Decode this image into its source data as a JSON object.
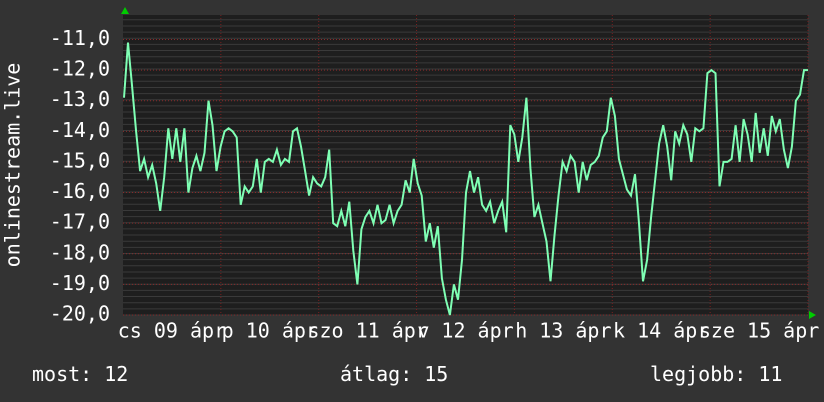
{
  "chart_data": {
    "type": "line",
    "y_label": "onlinestream.live",
    "x_labels": [
      "cs 09 ápr",
      "p 10 ápr",
      "szo 11 ápr",
      "v 12 ápr",
      "h 13 ápr",
      "k 14 ápr",
      "sze 15 ápr"
    ],
    "ylim": [
      -20,
      -10.2
    ],
    "yticks": [
      {
        "value": -11,
        "label": "-11,0"
      },
      {
        "value": -12,
        "label": "-12,0"
      },
      {
        "value": -13,
        "label": "-13,0"
      },
      {
        "value": -14,
        "label": "-14,0"
      },
      {
        "value": -15,
        "label": "-15,0"
      },
      {
        "value": -16,
        "label": "-16,0"
      },
      {
        "value": -17,
        "label": "-17,0"
      },
      {
        "value": -18,
        "label": "-18,0"
      },
      {
        "value": -19,
        "label": "-19,0"
      },
      {
        "value": -20,
        "label": "-20,0"
      }
    ],
    "grid": true,
    "series": [
      {
        "color": "#7fffb4",
        "values": [
          -12.9,
          -11.1,
          -12.5,
          -14,
          -15.3,
          -14.9,
          -15.5,
          -15.1,
          -15.7,
          -16.6,
          -15.5,
          -13.9,
          -14.9,
          -13.9,
          -15,
          -13.9,
          -16,
          -15.2,
          -14.8,
          -15.3,
          -14.7,
          -13,
          -13.8,
          -15.3,
          -14.5,
          -14,
          -13.9,
          -14,
          -14.2,
          -16.4,
          -15.8,
          -16,
          -15.8,
          -14.9,
          -16,
          -15,
          -14.9,
          -15,
          -14.6,
          -15.1,
          -14.9,
          -15,
          -14,
          -13.9,
          -14.5,
          -15.3,
          -16.1,
          -15.5,
          -15.7,
          -15.8,
          -15.5,
          -14.6,
          -17,
          -17.1,
          -16.6,
          -17.1,
          -16.3,
          -17.9,
          -19,
          -17.2,
          -16.8,
          -16.6,
          -17,
          -16.4,
          -17,
          -16.9,
          -16.4,
          -17,
          -16.6,
          -16.4,
          -15.6,
          -16,
          -14.9,
          -15.7,
          -16.1,
          -17.6,
          -17,
          -17.8,
          -17.1,
          -18.8,
          -19.5,
          -20,
          -19,
          -19.5,
          -18.2,
          -16,
          -15.3,
          -16,
          -15.5,
          -16.4,
          -16.6,
          -16.3,
          -17,
          -16.6,
          -16.3,
          -17.3,
          -13.8,
          -14.1,
          -15,
          -14.2,
          -12.9,
          -15.2,
          -16.8,
          -16.4,
          -17,
          -17.6,
          -18.9,
          -17.4,
          -16.1,
          -15,
          -15.3,
          -14.8,
          -15,
          -16,
          -15,
          -15.6,
          -15.1,
          -15,
          -14.8,
          -14.2,
          -14,
          -12.9,
          -13.5,
          -14.9,
          -15.4,
          -15.9,
          -16.1,
          -15.4,
          -17,
          -18.9,
          -18.2,
          -16.8,
          -15.6,
          -14.4,
          -13.8,
          -14.5,
          -15.6,
          -14,
          -14.4,
          -13.8,
          -14.1,
          -15,
          -13.9,
          -14,
          -13.9,
          -12.1,
          -12,
          -12.1,
          -15.8,
          -15,
          -15,
          -14.9,
          -13.8,
          -15,
          -13.6,
          -14.1,
          -15,
          -13.4,
          -14.7,
          -13.9,
          -14.8,
          -13.5,
          -14,
          -13.6,
          -14.6,
          -15.2,
          -14.5,
          -13,
          -12.8,
          -12,
          -12
        ]
      }
    ],
    "footer": [
      {
        "label": "most:",
        "value": 12
      },
      {
        "label": "átlag:",
        "value": 15
      },
      {
        "label": "legjobb:",
        "value": 11
      }
    ]
  }
}
